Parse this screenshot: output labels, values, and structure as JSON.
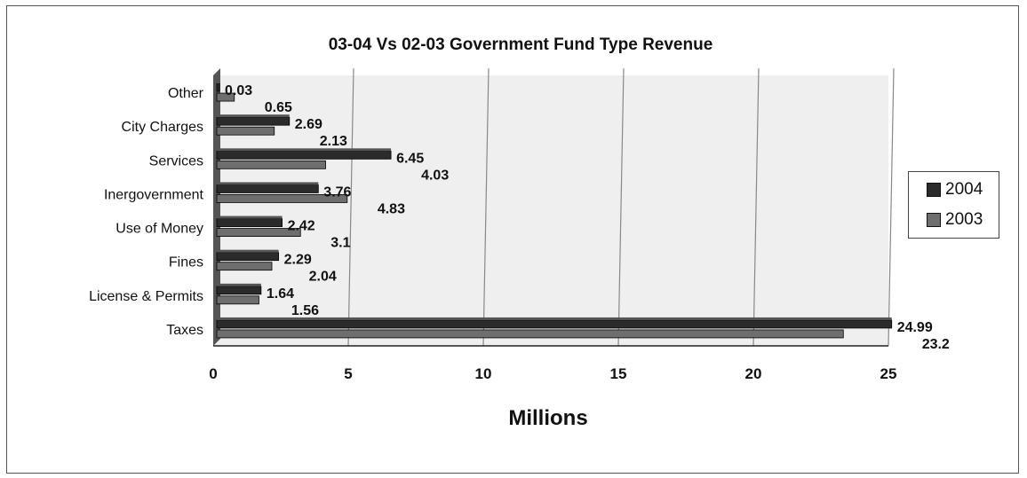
{
  "chart_data": {
    "type": "bar",
    "orientation": "horizontal",
    "title": "03-04 Vs 02-03 Government Fund Type Revenue",
    "xlabel": "Millions",
    "ylabel": "",
    "xlim": [
      0,
      25
    ],
    "xticks": [
      "0",
      "5",
      "10",
      "15",
      "20",
      "25"
    ],
    "categories": [
      "Other",
      "City Charges",
      "Services",
      "Inergovernment",
      "Use of Money",
      "Fines",
      "License & Permits",
      "Taxes"
    ],
    "series": [
      {
        "name": "2004",
        "color": "#2b2b2b",
        "values": [
          0.03,
          2.69,
          6.45,
          3.76,
          2.42,
          2.29,
          1.64,
          24.99
        ],
        "labels": [
          "0.03",
          "2.69",
          "6.45",
          "3.76",
          "2.42",
          "2.29",
          "1.64",
          "24.99"
        ]
      },
      {
        "name": "2003",
        "color": "#6e6e6e",
        "values": [
          0.65,
          2.13,
          4.03,
          4.83,
          3.1,
          2.04,
          1.56,
          23.2
        ],
        "labels": [
          "0.65",
          "2.13",
          "4.03",
          "4.83",
          "3.1",
          "2.04",
          "1.56",
          "23.2"
        ]
      }
    ],
    "grid": true,
    "legend_position": "right"
  }
}
